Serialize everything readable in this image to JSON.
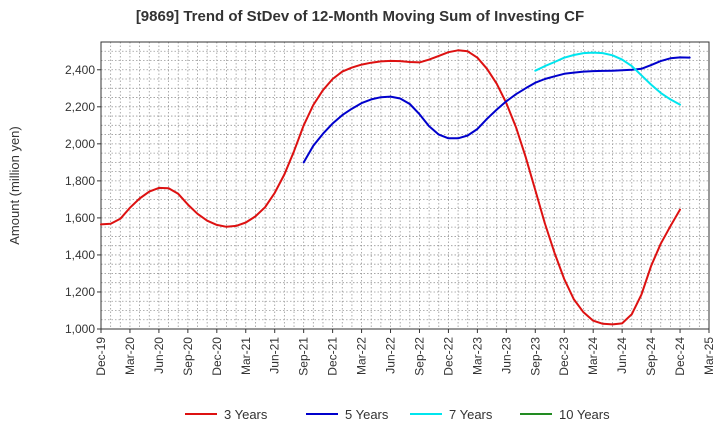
{
  "chart_data": {
    "type": "line",
    "title": "[9869]  Trend of StDev of 12-Month Moving Sum of Investing CF",
    "xlabel": "",
    "ylabel": "Amount (million yen)",
    "ylim": [
      1000,
      2550
    ],
    "yticks": [
      1000,
      1200,
      1400,
      1600,
      1800,
      2000,
      2200,
      2400
    ],
    "ytick_labels": [
      "1,000",
      "1,200",
      "1,400",
      "1,600",
      "1,800",
      "2,000",
      "2,200",
      "2,400"
    ],
    "x_start": "2019-12",
    "xlim_months": [
      "2019-12",
      "2025-03"
    ],
    "x_ticks": [
      "Dec-19",
      "Mar-20",
      "Jun-20",
      "Sep-20",
      "Dec-20",
      "Mar-21",
      "Jun-21",
      "Sep-21",
      "Dec-21",
      "Mar-22",
      "Jun-22",
      "Sep-22",
      "Dec-22",
      "Mar-23",
      "Jun-23",
      "Sep-23",
      "Dec-23",
      "Mar-24",
      "Jun-24",
      "Sep-24",
      "Dec-24",
      "Mar-25"
    ],
    "grid": true,
    "legend_position": "bottom",
    "series": [
      {
        "name": "3 Years",
        "color": "#dd1111",
        "start": "2019-12",
        "values": [
          1565,
          1568,
          1595,
          1655,
          1705,
          1742,
          1762,
          1760,
          1730,
          1672,
          1622,
          1585,
          1562,
          1552,
          1557,
          1575,
          1608,
          1658,
          1735,
          1835,
          1960,
          2100,
          2210,
          2290,
          2350,
          2390,
          2412,
          2428,
          2438,
          2445,
          2448,
          2447,
          2442,
          2440,
          2455,
          2475,
          2495,
          2505,
          2500,
          2465,
          2405,
          2325,
          2220,
          2090,
          1930,
          1750,
          1570,
          1410,
          1270,
          1160,
          1090,
          1045,
          1028,
          1025,
          1030,
          1080,
          1185,
          1340,
          1460,
          1555,
          1645
        ]
      },
      {
        "name": "5 Years",
        "color": "#0000cc",
        "start": "2021-09",
        "values": [
          1900,
          1990,
          2055,
          2110,
          2155,
          2190,
          2220,
          2240,
          2252,
          2255,
          2245,
          2215,
          2160,
          2095,
          2050,
          2030,
          2030,
          2045,
          2080,
          2135,
          2185,
          2230,
          2268,
          2300,
          2330,
          2350,
          2365,
          2378,
          2385,
          2390,
          2393,
          2394,
          2395,
          2397,
          2400,
          2405,
          2425,
          2447,
          2462,
          2467,
          2466
        ]
      },
      {
        "name": "7 Years",
        "color": "#00e5ee",
        "start": "2023-09",
        "values": [
          2395,
          2420,
          2442,
          2465,
          2480,
          2490,
          2493,
          2490,
          2478,
          2455,
          2420,
          2370,
          2320,
          2275,
          2240,
          2212
        ]
      },
      {
        "name": "10 Years",
        "color": "#228b22",
        "start": "2023-09",
        "values": []
      }
    ]
  }
}
